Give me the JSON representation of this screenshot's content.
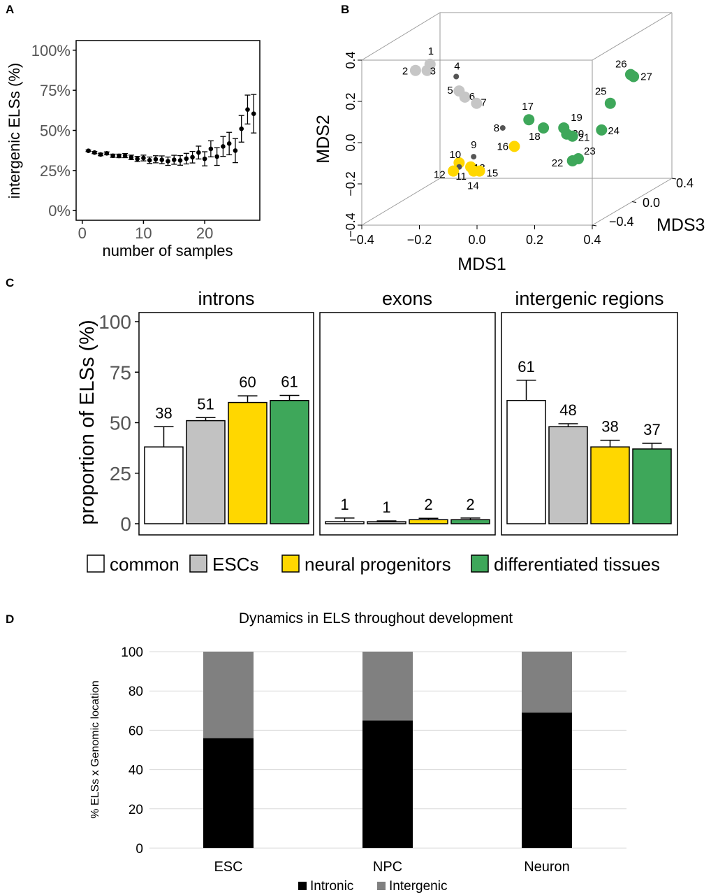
{
  "panel_labels": {
    "a": "A",
    "b": "B",
    "c": "C",
    "d": "D"
  },
  "chart_data": [
    {
      "panel": "A",
      "type": "scatter",
      "xlabel": "number of samples",
      "ylabel": "intergenic ELSs (%)",
      "xlim": [
        0,
        28
      ],
      "ylim": [
        0,
        100
      ],
      "x_ticks": [
        0,
        10,
        20
      ],
      "y_ticks": [
        {
          "value": 0,
          "label": "0%"
        },
        {
          "value": 25,
          "label": "25%"
        },
        {
          "value": 50,
          "label": "50%"
        },
        {
          "value": 75,
          "label": "75%"
        },
        {
          "value": 100,
          "label": "100%"
        }
      ],
      "points": [
        {
          "x": 1,
          "y": 37.3,
          "err": 0.5
        },
        {
          "x": 2,
          "y": 36.2,
          "err": 0.7
        },
        {
          "x": 3,
          "y": 35.0,
          "err": 0.8
        },
        {
          "x": 4,
          "y": 35.7,
          "err": 0.9
        },
        {
          "x": 5,
          "y": 34.2,
          "err": 1.0
        },
        {
          "x": 6,
          "y": 34.1,
          "err": 1.1
        },
        {
          "x": 7,
          "y": 34.3,
          "err": 1.3
        },
        {
          "x": 8,
          "y": 33.2,
          "err": 1.4
        },
        {
          "x": 9,
          "y": 32.2,
          "err": 1.6
        },
        {
          "x": 10,
          "y": 32.8,
          "err": 1.8
        },
        {
          "x": 11,
          "y": 31.4,
          "err": 2.0
        },
        {
          "x": 12,
          "y": 32.0,
          "err": 2.2
        },
        {
          "x": 13,
          "y": 31.7,
          "err": 2.4
        },
        {
          "x": 14,
          "y": 30.8,
          "err": 2.6
        },
        {
          "x": 15,
          "y": 31.7,
          "err": 2.8
        },
        {
          "x": 16,
          "y": 31.3,
          "err": 3.0
        },
        {
          "x": 17,
          "y": 32.4,
          "err": 3.3
        },
        {
          "x": 18,
          "y": 33.3,
          "err": 3.6
        },
        {
          "x": 19,
          "y": 36.2,
          "err": 4.0
        },
        {
          "x": 20,
          "y": 32.3,
          "err": 4.4
        },
        {
          "x": 21,
          "y": 38.5,
          "err": 5.0
        },
        {
          "x": 22,
          "y": 33.7,
          "err": 5.5
        },
        {
          "x": 23,
          "y": 40.0,
          "err": 6.2
        },
        {
          "x": 24,
          "y": 41.8,
          "err": 7.0
        },
        {
          "x": 25,
          "y": 37.4,
          "err": 7.5
        },
        {
          "x": 26,
          "y": 51.0,
          "err": 8.3
        },
        {
          "x": 27,
          "y": 63.0,
          "err": 9.0
        },
        {
          "x": 28,
          "y": 60.4,
          "err": 12.0
        }
      ],
      "grid": false
    },
    {
      "panel": "B",
      "type": "scatter",
      "dimensions": 3,
      "xlabel": "MDS1",
      "ylabel": "MDS2",
      "zlabel": "MDS3",
      "x_ticks": [
        "−0.4",
        "−0.2",
        "0.0",
        "0.2",
        "0.4"
      ],
      "y_ticks": [
        "−0.4",
        "−0.2",
        "0.0",
        "0.2",
        "0.4"
      ],
      "z_ticks": [
        "−0.4",
        "0.0",
        "0.4"
      ],
      "groups": [
        {
          "name": "common",
          "color": "#555555"
        },
        {
          "name": "ESCs",
          "color": "#c6c6c6"
        },
        {
          "name": "neural progenitors",
          "color": "#ffd700"
        },
        {
          "name": "differentiated tissues",
          "color": "#3ea75a"
        }
      ],
      "points": [
        {
          "label": "1",
          "group": "ESCs",
          "mds1": -0.17,
          "mds2": 0.38
        },
        {
          "label": "2",
          "group": "ESCs",
          "mds1": -0.22,
          "mds2": 0.35
        },
        {
          "label": "3",
          "group": "ESCs",
          "mds1": -0.18,
          "mds2": 0.35
        },
        {
          "label": "4",
          "group": "common",
          "mds1": -0.08,
          "mds2": 0.32
        },
        {
          "label": "5",
          "group": "ESCs",
          "mds1": -0.07,
          "mds2": 0.25
        },
        {
          "label": "6",
          "group": "ESCs",
          "mds1": -0.05,
          "mds2": 0.22
        },
        {
          "label": "7",
          "group": "ESCs",
          "mds1": -0.01,
          "mds2": 0.19
        },
        {
          "label": "8",
          "group": "common",
          "mds1": 0.08,
          "mds2": 0.07
        },
        {
          "label": "9",
          "group": "common",
          "mds1": -0.02,
          "mds2": -0.07
        },
        {
          "label": "10",
          "group": "neural progenitors",
          "mds1": -0.07,
          "mds2": -0.1
        },
        {
          "label": "11",
          "group": "common",
          "mds1": -0.07,
          "mds2": -0.12
        },
        {
          "label": "12",
          "group": "neural progenitors",
          "mds1": -0.09,
          "mds2": -0.14
        },
        {
          "label": "13",
          "group": "neural progenitors",
          "mds1": -0.03,
          "mds2": -0.12
        },
        {
          "label": "14",
          "group": "neural progenitors",
          "mds1": -0.02,
          "mds2": -0.14
        },
        {
          "label": "15",
          "group": "neural progenitors",
          "mds1": 0.0,
          "mds2": -0.14
        },
        {
          "label": "16",
          "group": "neural progenitors",
          "mds1": 0.12,
          "mds2": -0.02
        },
        {
          "label": "17",
          "group": "differentiated tissues",
          "mds1": 0.17,
          "mds2": 0.11
        },
        {
          "label": "18",
          "group": "differentiated tissues",
          "mds1": 0.22,
          "mds2": 0.07
        },
        {
          "label": "19",
          "group": "differentiated tissues",
          "mds1": 0.29,
          "mds2": 0.07
        },
        {
          "label": "20",
          "group": "differentiated tissues",
          "mds1": 0.3,
          "mds2": 0.04
        },
        {
          "label": "21",
          "group": "differentiated tissues",
          "mds1": 0.32,
          "mds2": 0.03
        },
        {
          "label": "22",
          "group": "differentiated tissues",
          "mds1": 0.32,
          "mds2": -0.09
        },
        {
          "label": "23",
          "group": "differentiated tissues",
          "mds1": 0.34,
          "mds2": -0.08
        },
        {
          "label": "24",
          "group": "differentiated tissues",
          "mds1": 0.42,
          "mds2": 0.06
        },
        {
          "label": "25",
          "group": "differentiated tissues",
          "mds1": 0.45,
          "mds2": 0.19
        },
        {
          "label": "26",
          "group": "differentiated tissues",
          "mds1": 0.52,
          "mds2": 0.33
        },
        {
          "label": "27",
          "group": "differentiated tissues",
          "mds1": 0.53,
          "mds2": 0.32
        }
      ]
    },
    {
      "panel": "C",
      "type": "bar",
      "ylabel": "proportion of ELSs (%)",
      "ylim": [
        0,
        100
      ],
      "y_ticks": [
        0,
        25,
        50,
        75,
        100
      ],
      "categories": [
        "common",
        "ESCs",
        "neural progenitors",
        "differentiated tissues"
      ],
      "colors": [
        "#ffffff",
        "#c2c2c2",
        "#ffd700",
        "#3ea75a"
      ],
      "facets": [
        {
          "name": "introns",
          "values": [
            38,
            51,
            60,
            61
          ],
          "errors": [
            10,
            1.5,
            3.3,
            2.5
          ],
          "labels": [
            "38",
            "51",
            "60",
            "61"
          ]
        },
        {
          "name": "exons",
          "values": [
            1,
            1,
            2,
            2
          ],
          "errors": [
            1.8,
            0.4,
            0.7,
            0.8
          ],
          "labels": [
            "1",
            "1",
            "2",
            "2"
          ]
        },
        {
          "name": "intergenic regions",
          "values": [
            61,
            48,
            38,
            37
          ],
          "errors": [
            10,
            1.5,
            3.3,
            2.8
          ],
          "labels": [
            "61",
            "48",
            "38",
            "37"
          ]
        }
      ],
      "legend": [
        "common",
        "ESCs",
        "neural progenitors",
        "differentiated tissues"
      ],
      "legend_position": "bottom"
    },
    {
      "panel": "D",
      "type": "bar",
      "stacked": true,
      "title": "Dynamics in ELS throughout development",
      "ylabel": "% ELSs x Genomic location",
      "ylim": [
        0,
        100
      ],
      "y_ticks": [
        0,
        20,
        40,
        60,
        80,
        100
      ],
      "categories": [
        "ESC",
        "NPC",
        "Neuron"
      ],
      "series": [
        {
          "name": "Intronic",
          "color": "#000000",
          "values": [
            56,
            65,
            69
          ]
        },
        {
          "name": "Intergenic",
          "color": "#808080",
          "values": [
            44,
            35,
            31
          ]
        }
      ],
      "grid": true,
      "legend_position": "bottom"
    }
  ]
}
